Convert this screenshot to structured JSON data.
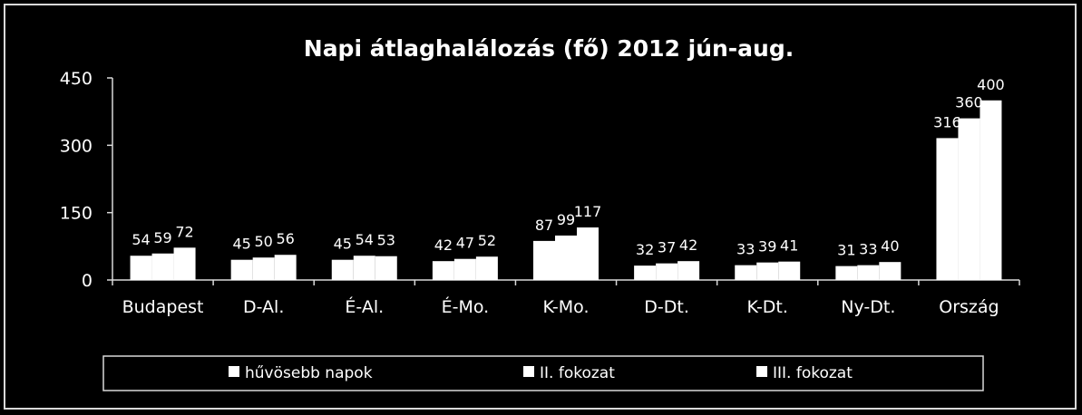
{
  "chart_data": {
    "type": "bar",
    "title": "Napi átlaghalálozás (fő) 2012 jún-aug.",
    "xlabel": "",
    "ylabel": "",
    "ylim": [
      0,
      450
    ],
    "yticks": [
      0,
      150,
      300,
      450
    ],
    "categories": [
      "Budapest",
      "D-Al.",
      "É-Al.",
      "É-Mo.",
      "K-Mo.",
      "D-Dt.",
      "K-Dt.",
      "Ny-Dt.",
      "Ország"
    ],
    "series": [
      {
        "name": "hűvösebb napok",
        "values": [
          54,
          45,
          45,
          42,
          87,
          32,
          33,
          31,
          316
        ]
      },
      {
        "name": "II. fokozat",
        "values": [
          59,
          50,
          54,
          47,
          99,
          37,
          39,
          33,
          360
        ]
      },
      {
        "name": "III. fokozat",
        "values": [
          72,
          56,
          53,
          52,
          117,
          42,
          41,
          40,
          400
        ]
      }
    ],
    "grid": false,
    "legend_position": "bottom",
    "colors": {
      "background": "#000000",
      "bars": "#ffffff",
      "text": "#ffffff",
      "axis": "#d9d9d9"
    }
  }
}
